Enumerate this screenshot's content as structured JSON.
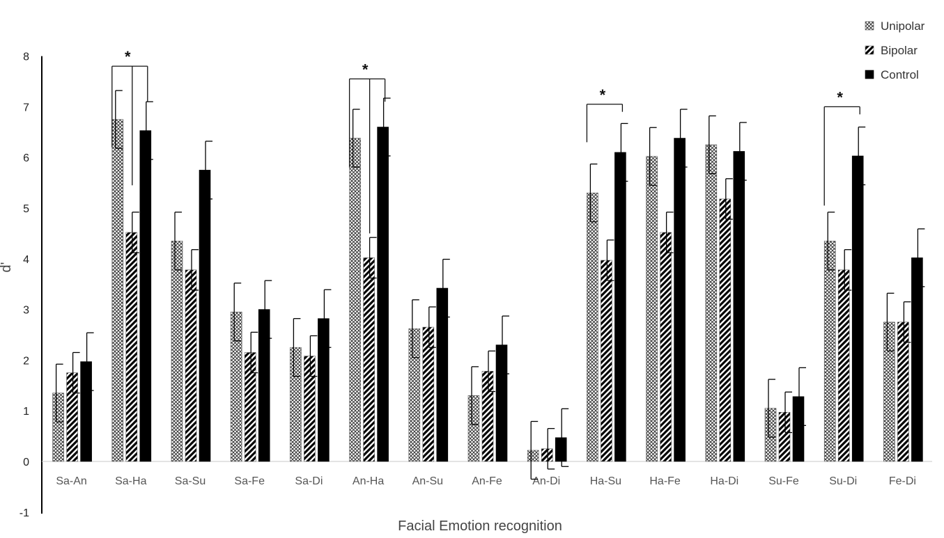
{
  "chart_data": {
    "type": "bar",
    "title": "",
    "xlabel": "Facial Emotion recognition",
    "ylabel": "d'",
    "ylim": [
      -1,
      8
    ],
    "yticks": [
      -1,
      0,
      1,
      2,
      3,
      4,
      5,
      6,
      7,
      8
    ],
    "grid": false,
    "legend_position": "top-right",
    "categories": [
      "Sa-An",
      "Sa-Ha",
      "Sa-Su",
      "Sa-Fe",
      "Sa-Di",
      "An-Ha",
      "An-Su",
      "An-Fe",
      "An-Di",
      "Ha-Su",
      "Ha-Fe",
      "Ha-Di",
      "Su-Fe",
      "Su-Di",
      "Fe-Di"
    ],
    "series": [
      {
        "name": "Unipolar",
        "pattern": "crosshatch",
        "values": [
          1.35,
          6.75,
          4.35,
          2.95,
          2.25,
          6.38,
          2.62,
          1.3,
          0.22,
          5.3,
          6.02,
          6.25,
          1.05,
          4.35,
          2.75
        ],
        "errors": [
          0.57,
          0.57,
          0.57,
          0.57,
          0.57,
          0.57,
          0.57,
          0.57,
          0.57,
          0.57,
          0.57,
          0.57,
          0.57,
          0.57,
          0.57
        ]
      },
      {
        "name": "Bipolar",
        "pattern": "diagonal",
        "values": [
          1.75,
          4.52,
          3.78,
          2.15,
          2.08,
          4.02,
          2.65,
          1.78,
          0.25,
          3.97,
          4.52,
          5.18,
          0.97,
          3.78,
          2.75
        ],
        "errors": [
          0.4,
          0.4,
          0.4,
          0.4,
          0.4,
          0.4,
          0.4,
          0.4,
          0.4,
          0.4,
          0.4,
          0.4,
          0.4,
          0.4,
          0.4
        ]
      },
      {
        "name": "Control",
        "pattern": "solid",
        "color": "#000000",
        "values": [
          1.97,
          6.53,
          5.75,
          3.0,
          2.82,
          6.6,
          3.42,
          2.3,
          0.47,
          6.1,
          6.38,
          6.12,
          1.28,
          6.03,
          4.02
        ],
        "errors": [
          0.57,
          0.57,
          0.57,
          0.57,
          0.57,
          0.57,
          0.57,
          0.57,
          0.57,
          0.57,
          0.57,
          0.57,
          0.57,
          0.57,
          0.57
        ]
      }
    ],
    "significance": [
      {
        "category": "Sa-Ha",
        "from": "Unipolar",
        "to": "Control",
        "label": "*",
        "bracket_y": 7.8,
        "drop_to": [
          6.2,
          7.1
        ],
        "mid_drop_to": 5.45
      },
      {
        "category": "An-Ha",
        "from": "Unipolar",
        "to": "Control",
        "label": "*",
        "bracket_y": 7.55,
        "drop_to": [
          5.8,
          7.1
        ],
        "mid_drop_to": 4.5
      },
      {
        "category": "Ha-Su",
        "from": "Unipolar",
        "to": "Control",
        "label": "*",
        "bracket_y": 7.05,
        "drop_to": [
          6.3,
          6.9
        ]
      },
      {
        "category": "Su-Di",
        "from": "Unipolar",
        "to": "Control",
        "label": "*",
        "bracket_y": 7.0,
        "drop_to": [
          5.05,
          6.85
        ]
      }
    ]
  }
}
